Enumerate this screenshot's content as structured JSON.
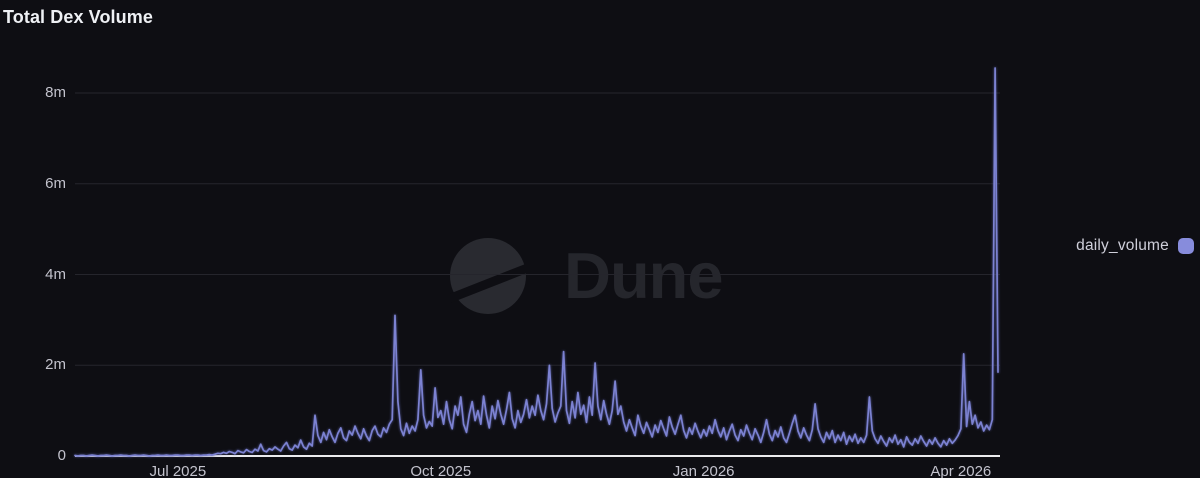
{
  "colors": {
    "background": "#0e0e13",
    "grid": "#25252c",
    "baseline": "#ebebee",
    "axis_text": "#c3c3cd",
    "accent": "#878cdc",
    "line": "#7c82d2",
    "watermark": "#25262c"
  },
  "watermark": {
    "brand": "Dune"
  },
  "legend": {
    "label": "daily_volume"
  },
  "chart_data": {
    "type": "line",
    "title": "Total Dex Volume",
    "grid": "horizontal",
    "legend_position": "right",
    "ylim": [
      0,
      8.8
    ],
    "y_unit": "millions",
    "y_ticks": [
      {
        "label": "0",
        "value": 0
      },
      {
        "label": "2m",
        "value": 2
      },
      {
        "label": "4m",
        "value": 4
      },
      {
        "label": "6m",
        "value": 6
      },
      {
        "label": "8m",
        "value": 8
      }
    ],
    "x_ticks": [
      {
        "label": "Jul 2025",
        "index": 36
      },
      {
        "label": "Oct 2025",
        "index": 128
      },
      {
        "label": "Jan 2026",
        "index": 220
      },
      {
        "label": "Apr 2026",
        "index": 310
      }
    ],
    "series": [
      {
        "name": "daily_volume",
        "color": "#7c82d2",
        "start_date": "2025-05-26",
        "end_date": "2026-04-14",
        "interval": "daily",
        "unit": "millions",
        "values": [
          0.01,
          0,
          0.01,
          0.01,
          0,
          0.01,
          0.02,
          0.01,
          0,
          0.01,
          0.01,
          0.02,
          0.01,
          0,
          0.01,
          0.01,
          0.02,
          0.01,
          0.01,
          0,
          0.01,
          0.02,
          0.01,
          0.01,
          0.02,
          0.01,
          0,
          0.01,
          0.01,
          0.02,
          0.01,
          0.01,
          0.02,
          0.01,
          0.01,
          0.02,
          0.02,
          0.01,
          0.01,
          0.02,
          0.02,
          0.01,
          0.02,
          0.02,
          0.01,
          0.02,
          0.02,
          0.03,
          0.02,
          0.04,
          0.06,
          0.05,
          0.08,
          0.06,
          0.1,
          0.08,
          0.05,
          0.12,
          0.09,
          0.07,
          0.14,
          0.1,
          0.08,
          0.15,
          0.11,
          0.26,
          0.12,
          0.09,
          0.16,
          0.13,
          0.2,
          0.15,
          0.11,
          0.22,
          0.3,
          0.16,
          0.13,
          0.24,
          0.18,
          0.35,
          0.2,
          0.15,
          0.28,
          0.22,
          0.9,
          0.45,
          0.3,
          0.52,
          0.36,
          0.58,
          0.42,
          0.3,
          0.5,
          0.62,
          0.4,
          0.34,
          0.55,
          0.46,
          0.66,
          0.5,
          0.38,
          0.6,
          0.44,
          0.34,
          0.56,
          0.66,
          0.48,
          0.42,
          0.62,
          0.52,
          0.7,
          0.8,
          3.1,
          1.2,
          0.6,
          0.45,
          0.72,
          0.5,
          0.66,
          0.55,
          0.8,
          1.9,
          0.9,
          0.62,
          0.76,
          0.66,
          1.5,
          0.85,
          1.0,
          0.7,
          1.2,
          0.8,
          0.6,
          1.1,
          0.9,
          1.3,
          0.7,
          0.52,
          0.92,
          1.2,
          0.78,
          1.0,
          0.7,
          1.32,
          0.9,
          0.62,
          1.1,
          0.82,
          1.22,
          0.92,
          0.7,
          1.02,
          1.4,
          0.82,
          0.62,
          1.0,
          0.74,
          0.92,
          1.24,
          0.84,
          1.1,
          0.9,
          1.34,
          1.0,
          0.8,
          1.15,
          2.0,
          1.05,
          0.75,
          0.95,
          1.1,
          2.3,
          1.0,
          0.72,
          1.2,
          0.84,
          1.4,
          0.92,
          1.12,
          0.74,
          1.3,
          0.9,
          2.05,
          1.1,
          0.8,
          1.22,
          0.92,
          0.7,
          1.0,
          1.65,
          0.92,
          1.1,
          0.75,
          0.55,
          0.8,
          0.62,
          0.45,
          0.9,
          0.66,
          0.5,
          0.74,
          0.58,
          0.42,
          0.68,
          0.52,
          0.78,
          0.6,
          0.44,
          0.86,
          0.64,
          0.48,
          0.7,
          0.9,
          0.56,
          0.4,
          0.62,
          0.48,
          0.72,
          0.54,
          0.4,
          0.58,
          0.44,
          0.66,
          0.5,
          0.8,
          0.56,
          0.42,
          0.62,
          0.36,
          0.55,
          0.7,
          0.46,
          0.34,
          0.58,
          0.44,
          0.68,
          0.5,
          0.36,
          0.6,
          0.46,
          0.3,
          0.52,
          0.8,
          0.48,
          0.34,
          0.56,
          0.42,
          0.64,
          0.4,
          0.3,
          0.5,
          0.72,
          0.9,
          0.55,
          0.4,
          0.62,
          0.46,
          0.34,
          0.58,
          1.15,
          0.6,
          0.42,
          0.3,
          0.52,
          0.38,
          0.56,
          0.3,
          0.46,
          0.34,
          0.52,
          0.26,
          0.44,
          0.32,
          0.48,
          0.28,
          0.4,
          0.3,
          0.46,
          1.3,
          0.55,
          0.38,
          0.28,
          0.44,
          0.32,
          0.22,
          0.4,
          0.3,
          0.46,
          0.26,
          0.36,
          0.2,
          0.42,
          0.3,
          0.24,
          0.38,
          0.28,
          0.44,
          0.32,
          0.22,
          0.36,
          0.26,
          0.4,
          0.28,
          0.2,
          0.34,
          0.24,
          0.38,
          0.28,
          0.35,
          0.45,
          0.6,
          2.25,
          0.65,
          1.2,
          0.7,
          0.9,
          0.62,
          0.75,
          0.55,
          0.68,
          0.58,
          0.8,
          8.55,
          1.85
        ]
      }
    ]
  }
}
